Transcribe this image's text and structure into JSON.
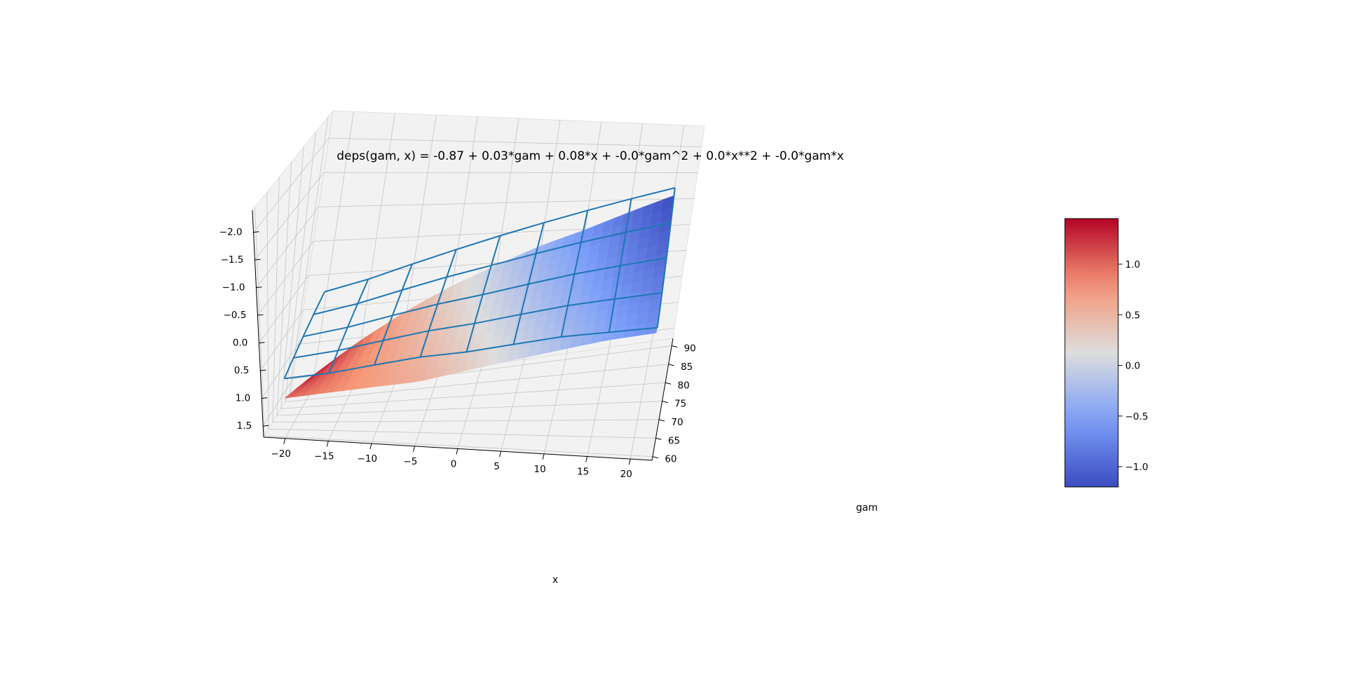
{
  "chart_data": {
    "type": "surface3d",
    "title": "deps(gam, x) = -0.87 + 0.03*gam + 0.08*x + -0.0*gam^2 + 0.0*x**2 + -0.0*gam*x",
    "xlabel": "x",
    "ylabel": "gam",
    "zlabel": "",
    "x_ticks": [
      "−20",
      "−15",
      "−10",
      "−5",
      "0",
      "5",
      "10",
      "15",
      "20"
    ],
    "y_ticks": [
      "60",
      "65",
      "70",
      "75",
      "80",
      "85",
      "90"
    ],
    "z_ticks": [
      "−2.0",
      "−1.5",
      "−1.0",
      "−0.5",
      "0.0",
      "0.5",
      "1.0",
      "1.5"
    ],
    "xlim": [
      -22.5,
      22.5
    ],
    "ylim": [
      59,
      92
    ],
    "zlim": [
      -2.4,
      1.7
    ],
    "z_axis_inverted": true,
    "grid": true,
    "colorbar": {
      "cmap": "coolwarm",
      "range": [
        -1.2,
        1.45
      ],
      "ticks": [
        "1.0",
        "0.5",
        "0.0",
        "−0.5",
        "−1.0"
      ],
      "placement": "right"
    },
    "surface": {
      "x": [
        -20,
        -15,
        -10,
        -5,
        0,
        5,
        10,
        15,
        20
      ],
      "gam": [
        60,
        90
      ],
      "z_at_gam_60": [
        1.0,
        0.85,
        0.7,
        0.55,
        0.3,
        0.05,
        -0.2,
        -0.45,
        -0.65
      ],
      "z_at_gam_90": [
        1.45,
        1.0,
        0.6,
        0.25,
        -0.05,
        -0.35,
        -0.6,
        -0.9,
        -1.2
      ]
    },
    "wireframe": {
      "color": "#1f77b4",
      "x": [
        -20,
        -15,
        -10,
        -5,
        0,
        5,
        10,
        15,
        20
      ],
      "gam": [
        60,
        67.5,
        75,
        82.5,
        90
      ],
      "z_at_gam_60": [
        0.65,
        0.5,
        0.3,
        0.1,
        -0.05,
        -0.25,
        -0.45,
        -0.6,
        -0.75
      ],
      "z_at_gam_90": [
        0.2,
        0.05,
        -0.15,
        -0.35,
        -0.55,
        -0.75,
        -0.95,
        -1.15,
        -1.35
      ]
    }
  }
}
